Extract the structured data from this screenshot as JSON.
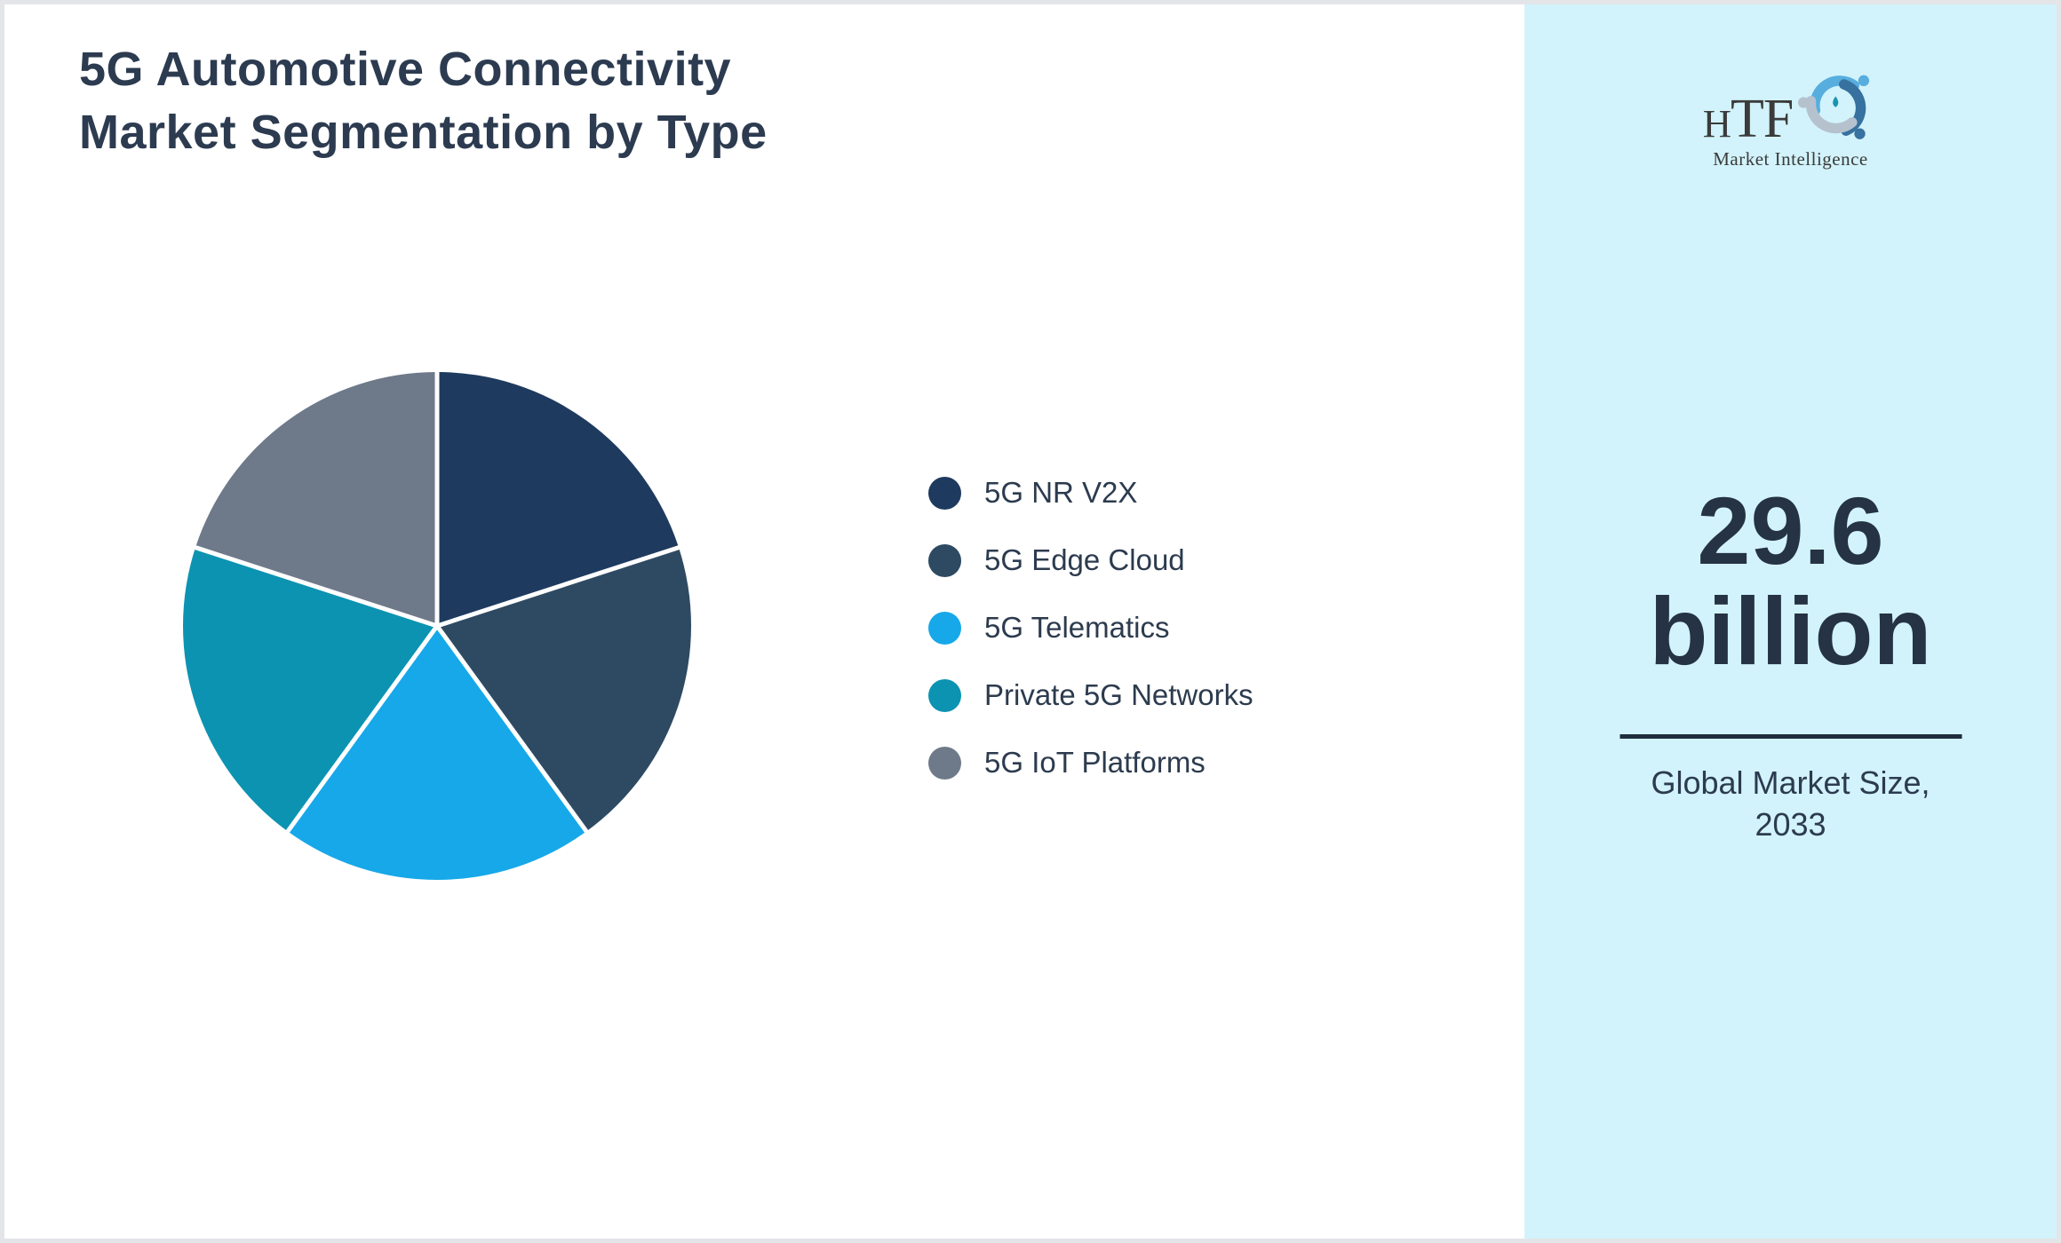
{
  "page": {
    "title_line1": "5G Automotive Connectivity",
    "title_line2": "Market Segmentation by Type"
  },
  "logo": {
    "text": "HTF",
    "subtext": "Market Intelligence"
  },
  "chart_data": {
    "type": "pie",
    "title": "5G Automotive Connectivity Market Segmentation by Type",
    "labels": [
      "5G NR V2X",
      "5G Edge Cloud",
      "5G Telematics",
      "Private 5G Networks",
      "5G IoT Platforms"
    ],
    "values": [
      20,
      20,
      20,
      20,
      20
    ],
    "values_note": "slices visually equal, ~72 degrees each, no data labels shown",
    "colors": [
      "#1e3a5f",
      "#2e4a63",
      "#16a8e9",
      "#0c93b2",
      "#6e7a8a"
    ],
    "start_angle_deg": 0,
    "direction": "clockwise",
    "slice_border_color": "#ffffff",
    "legend_position": "right"
  },
  "panel": {
    "background_color": "#d2f3fb",
    "value": "29.6",
    "unit": "billion",
    "caption_line1": "Global Market Size,",
    "caption_line2": "2033"
  }
}
